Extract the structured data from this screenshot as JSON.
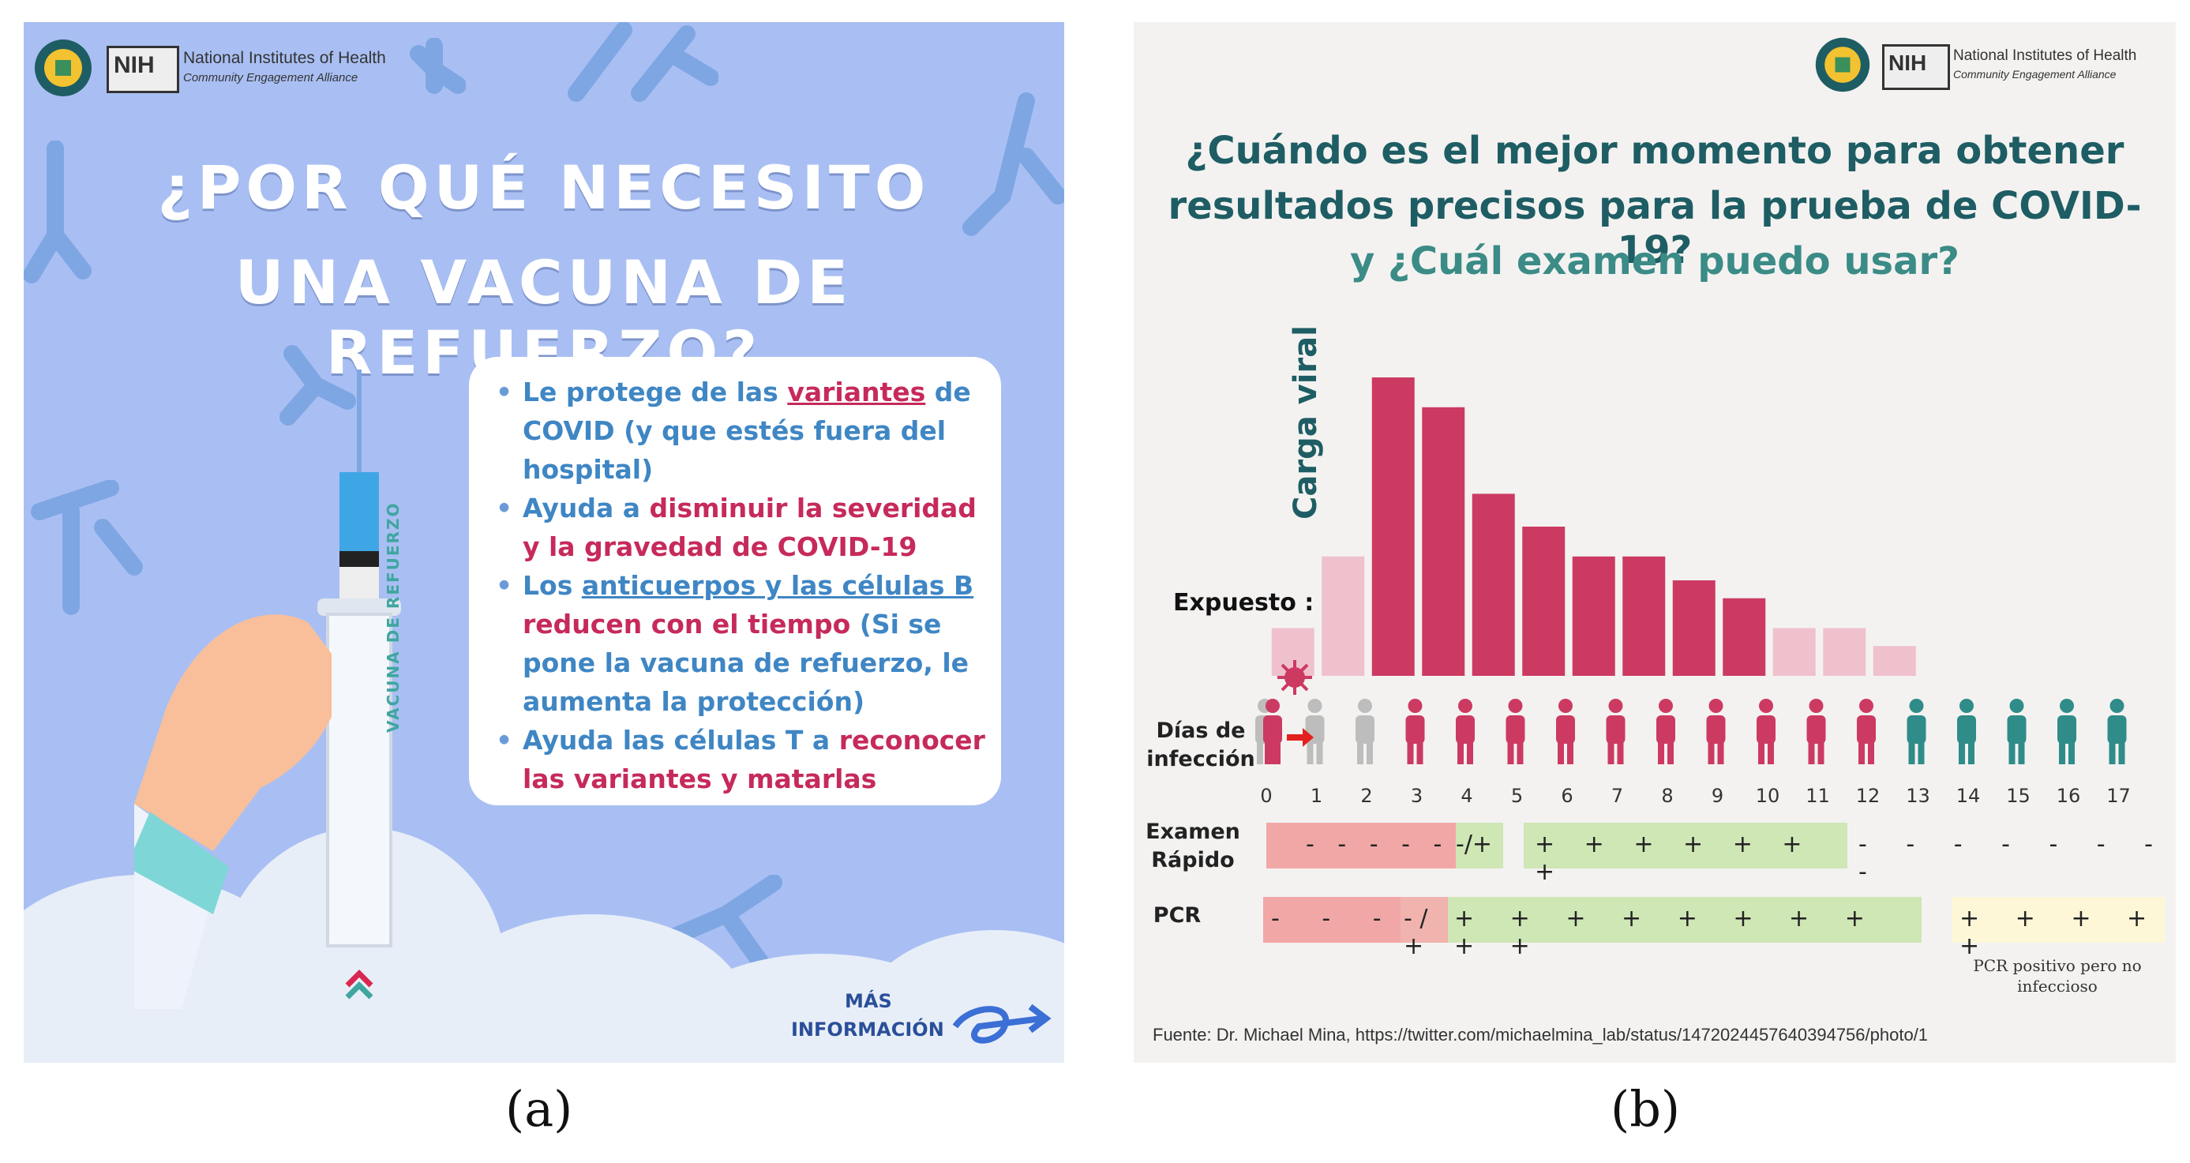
{
  "panel_a": {
    "logo": {
      "org": "NIH",
      "name": "National Institutes of Health",
      "sub": "Community Engagement Alliance"
    },
    "title_line1": "¿POR QUÉ NECESITO",
    "title_line2": "UNA VACUNA DE REFUERZO?",
    "syringe_label": "VACUNA DE REFUERZO",
    "bullets": [
      {
        "p1": "Le protege de las ",
        "p2": "variantes",
        "p3": " de COVID (y que estés fuera del hospital)"
      },
      {
        "p1": "Ayuda a ",
        "p2": "disminuir la severidad y la gravedad de COVID-19"
      },
      {
        "p1": "Los ",
        "p2": "anticuerpos y las células B",
        "p3": " reducen con el tiempo",
        "p4": " (Si se pone la vacuna de refuerzo, le aumenta la protección)"
      },
      {
        "p1": "Ayuda las células T a ",
        "p2": "reconocer las variantes y matarlas"
      }
    ],
    "more_line1": "MÁS",
    "more_line2": "INFORMACIÓN",
    "colors": {
      "bg": "#a9bff3",
      "blue": "#3f86c4",
      "red": "#c62a5a"
    }
  },
  "panel_b": {
    "logo": {
      "org": "NIH",
      "name": "National Institutes of Health",
      "sub": "Community Engagement Alliance"
    },
    "title_line1": "¿Cuándo es el mejor momento para obtener",
    "title_line2": "resultados precisos para la prueba de COVID-19?",
    "title_line3": "y ¿Cuál examen puedo usar?",
    "row_label_days": [
      "Días de",
      "infección"
    ],
    "row_label_rapid": [
      "Examen",
      "Rápido"
    ],
    "row_label_pcr": "PCR",
    "rapid_neg": "- - - - -",
    "rapid_mid": "-/+",
    "rapid_pos": "+ + + + + + +",
    "rapid_after": "- - - - - - - -",
    "pcr_neg": "- - -",
    "pcr_mid": "- / +",
    "pcr_pos": "+ + + + + + + + + +",
    "pcr_after": "+ + + + +",
    "pcr_note": "PCR positivo pero no infeccioso",
    "source": "Fuente: Dr. Michael Mina, https://twitter.com/michaelmina_lab/status/1472024457640394756/photo/1"
  },
  "chart_data": {
    "type": "bar",
    "title": "¿Cuándo es el mejor momento para obtener resultados precisos para la prueba de COVID-19?",
    "ylabel": "Carga viral",
    "xlabel": "Días de infección",
    "annotation": "Expuesto : Día 0",
    "categories": [
      "0",
      "1",
      "2",
      "3",
      "4",
      "5",
      "6",
      "7",
      "8",
      "9",
      "10",
      "11",
      "12",
      "13",
      "14",
      "15",
      "16",
      "17"
    ],
    "values": [
      0.16,
      0.4,
      1.0,
      0.9,
      0.61,
      0.5,
      0.4,
      0.4,
      0.32,
      0.26,
      0.16,
      0.16,
      0.1,
      0,
      0,
      0,
      0,
      0
    ],
    "ylim": [
      0,
      1.0
    ],
    "bar_colors": [
      "#efc1cc",
      "#efc1cc",
      "#cc3a62",
      "#cc3a62",
      "#cc3a62",
      "#cc3a62",
      "#cc3a62",
      "#cc3a62",
      "#cc3a62",
      "#cc3a62",
      "#efc1cc",
      "#efc1cc",
      "#efc1cc",
      "",
      "",
      "",
      "",
      ""
    ],
    "person_colors": [
      "#bdbdbd",
      "#bdbdbd",
      "#bdbdbd",
      "#cc3a62",
      "#cc3a62",
      "#cc3a62",
      "#cc3a62",
      "#cc3a62",
      "#cc3a62",
      "#cc3a62",
      "#cc3a62",
      "#cc3a62",
      "#cc3a62",
      "#2f8c89",
      "#2f8c89",
      "#2f8c89",
      "#2f8c89",
      "#2f8c89"
    ]
  },
  "captions": {
    "a": "(a)",
    "b": "(b)"
  }
}
